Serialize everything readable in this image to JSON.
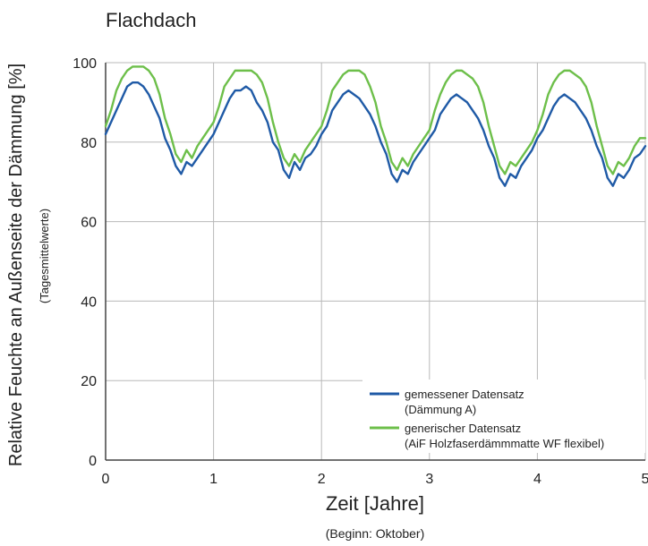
{
  "chart_data": {
    "type": "line",
    "title": "Flachdach",
    "xlabel": "Zeit [Jahre]",
    "xsublabel": "(Beginn: Oktober)",
    "ylabel": "Relative Feuchte an Außenseite der Dämmung [%]",
    "ysublabel": "(Tagesmittelwerte)",
    "xlim": [
      0,
      5
    ],
    "ylim": [
      0,
      100
    ],
    "xticks": [
      "0",
      "1",
      "2",
      "3",
      "4",
      "5"
    ],
    "yticks": [
      "0",
      "20",
      "40",
      "60",
      "80",
      "100"
    ],
    "grid": true,
    "legend": {
      "position": "bottom-right",
      "entries": [
        "gemessener Datensatz",
        "(Dämmung A)",
        "generischer Datensatz",
        "(AiF Holzfaserdämmmatte WF flexibel)"
      ]
    },
    "series": [
      {
        "name": "gemessener Datensatz (Dämmung A)",
        "color": "#1f5aa6",
        "x": [
          0,
          0.05,
          0.1,
          0.15,
          0.2,
          0.25,
          0.3,
          0.35,
          0.4,
          0.45,
          0.5,
          0.55,
          0.6,
          0.65,
          0.7,
          0.75,
          0.8,
          0.85,
          0.9,
          0.95,
          1,
          1.05,
          1.1,
          1.15,
          1.2,
          1.25,
          1.3,
          1.35,
          1.4,
          1.45,
          1.5,
          1.55,
          1.6,
          1.65,
          1.7,
          1.75,
          1.8,
          1.85,
          1.9,
          1.95,
          2,
          2.05,
          2.1,
          2.15,
          2.2,
          2.25,
          2.3,
          2.35,
          2.4,
          2.45,
          2.5,
          2.55,
          2.6,
          2.65,
          2.7,
          2.75,
          2.8,
          2.85,
          2.9,
          2.95,
          3,
          3.05,
          3.1,
          3.15,
          3.2,
          3.25,
          3.3,
          3.35,
          3.4,
          3.45,
          3.5,
          3.55,
          3.6,
          3.65,
          3.7,
          3.75,
          3.8,
          3.85,
          3.9,
          3.95,
          4,
          4.05,
          4.1,
          4.15,
          4.2,
          4.25,
          4.3,
          4.35,
          4.4,
          4.45,
          4.5,
          4.55,
          4.6,
          4.65,
          4.7,
          4.75,
          4.8,
          4.85,
          4.9,
          4.95,
          5
        ],
        "y": [
          82,
          85,
          88,
          91,
          94,
          95,
          95,
          94,
          92,
          89,
          86,
          81,
          78,
          74,
          72,
          75,
          74,
          76,
          78,
          80,
          82,
          85,
          88,
          91,
          93,
          93,
          94,
          93,
          90,
          88,
          85,
          80,
          78,
          73,
          71,
          75,
          73,
          76,
          77,
          79,
          82,
          84,
          88,
          90,
          92,
          93,
          92,
          91,
          89,
          87,
          84,
          80,
          77,
          72,
          70,
          73,
          72,
          75,
          77,
          79,
          81,
          83,
          87,
          89,
          91,
          92,
          91,
          90,
          88,
          86,
          83,
          79,
          76,
          71,
          69,
          72,
          71,
          74,
          76,
          78,
          81,
          83,
          86,
          89,
          91,
          92,
          91,
          90,
          88,
          86,
          83,
          79,
          76,
          71,
          69,
          72,
          71,
          73,
          76,
          77,
          79
        ]
      },
      {
        "name": "generischer Datensatz (AiF Holzfaserdämmmatte WF flexibel)",
        "color": "#6dbf4a",
        "x": [
          0,
          0.05,
          0.1,
          0.15,
          0.2,
          0.25,
          0.3,
          0.35,
          0.4,
          0.45,
          0.5,
          0.55,
          0.6,
          0.65,
          0.7,
          0.75,
          0.8,
          0.85,
          0.9,
          0.95,
          1,
          1.05,
          1.1,
          1.15,
          1.2,
          1.25,
          1.3,
          1.35,
          1.4,
          1.45,
          1.5,
          1.55,
          1.6,
          1.65,
          1.7,
          1.75,
          1.8,
          1.85,
          1.9,
          1.95,
          2,
          2.05,
          2.1,
          2.15,
          2.2,
          2.25,
          2.3,
          2.35,
          2.4,
          2.45,
          2.5,
          2.55,
          2.6,
          2.65,
          2.7,
          2.75,
          2.8,
          2.85,
          2.9,
          2.95,
          3,
          3.05,
          3.1,
          3.15,
          3.2,
          3.25,
          3.3,
          3.35,
          3.4,
          3.45,
          3.5,
          3.55,
          3.6,
          3.65,
          3.7,
          3.75,
          3.8,
          3.85,
          3.9,
          3.95,
          4,
          4.05,
          4.1,
          4.15,
          4.2,
          4.25,
          4.3,
          4.35,
          4.4,
          4.45,
          4.5,
          4.55,
          4.6,
          4.65,
          4.7,
          4.75,
          4.8,
          4.85,
          4.9,
          4.95,
          5
        ],
        "y": [
          84,
          88,
          93,
          96,
          98,
          99,
          99,
          99,
          98,
          96,
          92,
          86,
          82,
          77,
          75,
          78,
          76,
          79,
          81,
          83,
          85,
          89,
          94,
          96,
          98,
          98,
          98,
          98,
          97,
          95,
          91,
          85,
          80,
          76,
          74,
          77,
          75,
          78,
          80,
          82,
          84,
          88,
          93,
          95,
          97,
          98,
          98,
          98,
          97,
          94,
          90,
          84,
          80,
          75,
          73,
          76,
          74,
          77,
          79,
          81,
          83,
          88,
          92,
          95,
          97,
          98,
          98,
          97,
          96,
          94,
          90,
          84,
          79,
          74,
          72,
          75,
          74,
          76,
          78,
          80,
          83,
          87,
          92,
          95,
          97,
          98,
          98,
          97,
          96,
          94,
          90,
          84,
          79,
          74,
          72,
          75,
          74,
          76,
          79,
          81,
          81
        ]
      }
    ]
  }
}
